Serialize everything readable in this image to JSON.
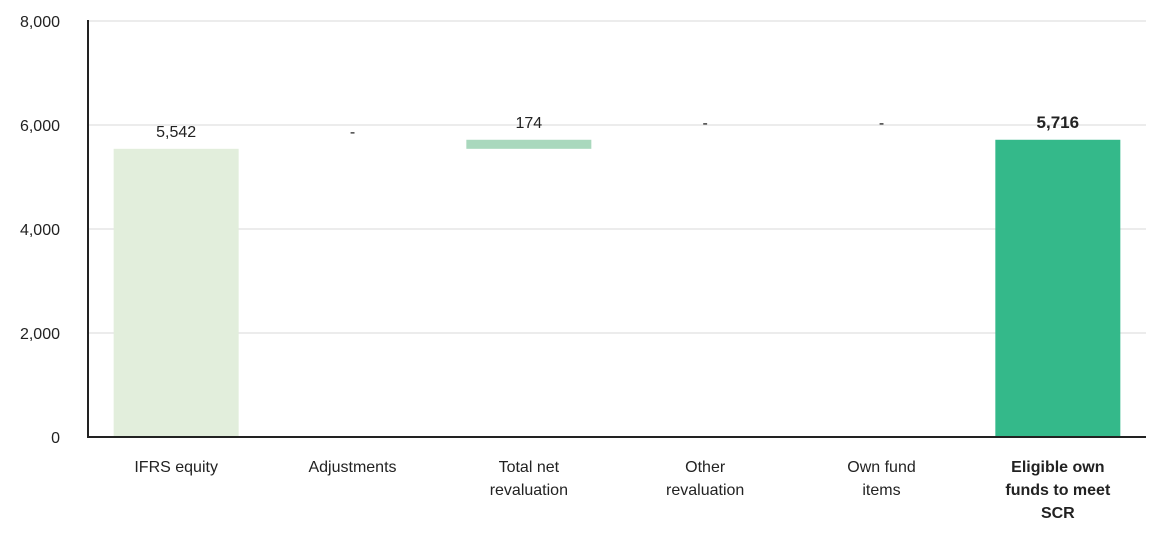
{
  "chart_data": {
    "type": "bar",
    "title": "",
    "xlabel": "",
    "ylabel": "",
    "ylim": [
      0,
      8000
    ],
    "yticks": [
      0,
      2000,
      4000,
      6000,
      8000
    ],
    "ytick_labels": [
      "0",
      "2,000",
      "4,000",
      "6,000",
      "8,000"
    ],
    "grid": true,
    "categories": [
      [
        "IFRS equity"
      ],
      [
        "Adjustments"
      ],
      [
        "Total net",
        "revaluation"
      ],
      [
        "Other",
        "revaluation"
      ],
      [
        "Own fund",
        "items"
      ],
      [
        "Eligible own",
        "funds to meet",
        "SCR"
      ]
    ],
    "bars": [
      {
        "start": 0,
        "end": 5542,
        "color": "#e2eedc"
      },
      null,
      {
        "start": 5542,
        "end": 5716,
        "color": "#a9d8bd"
      },
      null,
      null,
      {
        "start": 0,
        "end": 5716,
        "color": "#34b98a"
      }
    ],
    "data_labels": [
      "5,542",
      "-",
      "174",
      "-",
      "-",
      "5,716"
    ],
    "label_values": [
      5542,
      5542,
      5716,
      5716,
      5716,
      5716
    ],
    "emphasis": [
      false,
      false,
      false,
      false,
      false,
      true
    ],
    "colors": {
      "axis": "#222222",
      "grid": "#d9d9d9"
    }
  }
}
